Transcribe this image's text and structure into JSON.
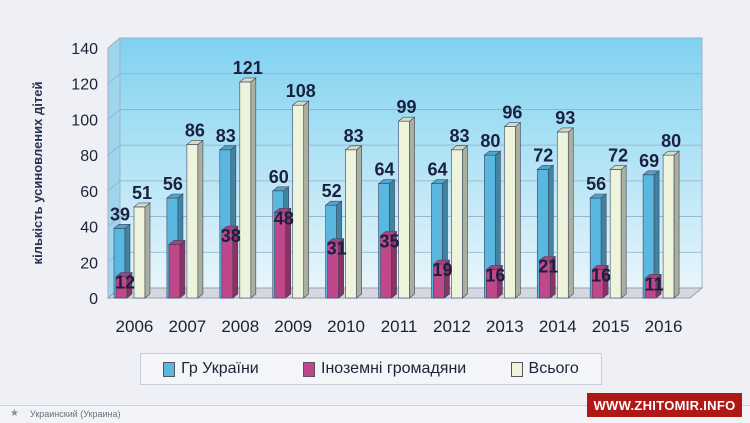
{
  "chart_data": {
    "type": "bar",
    "title": "",
    "xlabel": "",
    "ylabel": "кількість усиновлених дітей",
    "categories": [
      "2006",
      "2007",
      "2008",
      "2009",
      "2010",
      "2011",
      "2012",
      "2013",
      "2014",
      "2015",
      "2016"
    ],
    "series": [
      {
        "name": "Гр України",
        "values": [
          39,
          56,
          83,
          60,
          52,
          64,
          64,
          80,
          72,
          56,
          69
        ],
        "color": "#5ab7e0"
      },
      {
        "name": "Іноземні громадяни",
        "values": [
          12,
          30,
          38,
          48,
          31,
          35,
          19,
          16,
          21,
          16,
          11
        ],
        "color": "#c0478a"
      },
      {
        "name": "Всього",
        "values": [
          51,
          86,
          121,
          108,
          83,
          99,
          83,
          96,
          93,
          72,
          80
        ],
        "color": "#eef4dc"
      }
    ],
    "labeled": {
      "Гр України": [
        39,
        56,
        83,
        60,
        52,
        64,
        64,
        80,
        72,
        56,
        69
      ],
      "Іноземні громадяни": [
        12,
        null,
        38,
        48,
        31,
        35,
        19,
        16,
        21,
        16,
        11
      ],
      "Всього": [
        51,
        86,
        121,
        108,
        83,
        99,
        83,
        96,
        93,
        72,
        80
      ]
    },
    "ylim": [
      0,
      140
    ],
    "yticks": [
      0,
      20,
      40,
      60,
      80,
      100,
      120,
      140
    ],
    "grid": true,
    "legend": "bottom"
  },
  "statusbar": {
    "language": "Украинский (Украина)"
  },
  "watermark": {
    "text": "WWW.ZHITOMIR.INFO"
  }
}
